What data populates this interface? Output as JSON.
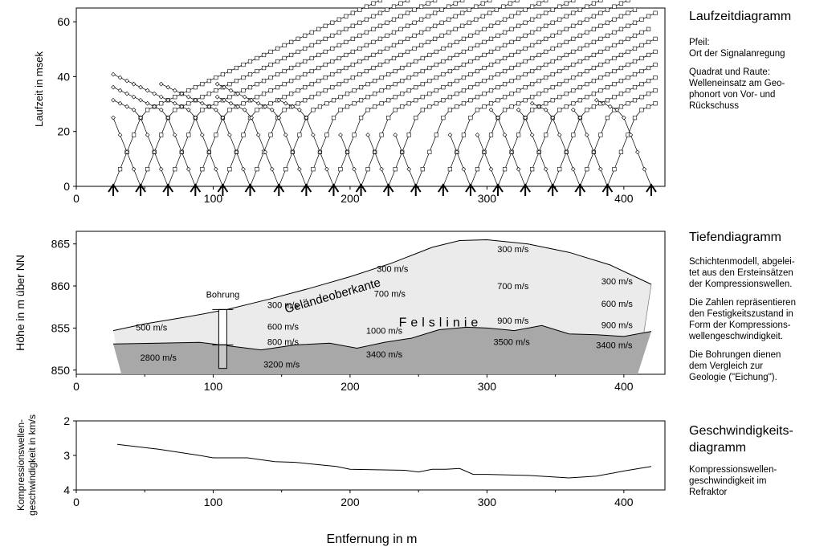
{
  "chart_data": [
    {
      "type": "scatter",
      "panel": "travel-time",
      "ylabel": "Laufzeit in msek",
      "xlim": [
        0,
        430
      ],
      "ylim": [
        0,
        65
      ],
      "yticks": [
        "0",
        "20",
        "40",
        "60"
      ],
      "xticks": [
        "0",
        "100",
        "200",
        "300",
        "400"
      ],
      "shot_points": [
        27,
        47,
        67,
        87,
        107,
        127,
        148,
        168,
        188,
        208,
        228,
        248,
        268,
        288,
        308,
        328,
        348,
        368,
        388,
        420
      ],
      "forward_max_x": [
        380,
        420,
        423,
        423,
        420,
        423,
        423,
        423,
        423,
        423,
        410,
        423,
        420,
        423,
        423,
        423,
        423,
        423,
        423,
        423
      ],
      "reverse_min_x": [
        27,
        27,
        27,
        27,
        27,
        60,
        100,
        100,
        145,
        190,
        210,
        230,
        270,
        270,
        290,
        300,
        320,
        330,
        360,
        380
      ],
      "velocity_near_m_s": 800,
      "velocity_far_m_s": 3400,
      "grid": false
    },
    {
      "type": "area",
      "panel": "depth",
      "ylabel": "Höhe in m über NN",
      "xlim": [
        0,
        430
      ],
      "ylim": [
        849.5,
        866.5
      ],
      "yticks": [
        "850",
        "855",
        "860",
        "865"
      ],
      "xticks": [
        "0",
        "100",
        "200",
        "300",
        "400"
      ],
      "surface": {
        "label": "Geländeoberkante",
        "x": [
          27,
          50,
          80,
          110,
          140,
          170,
          200,
          230,
          260,
          280,
          300,
          330,
          360,
          390,
          420
        ],
        "y": [
          854.7,
          855.5,
          856.3,
          857.2,
          858.4,
          859.7,
          861.1,
          862.7,
          864.6,
          865.4,
          865.5,
          865.0,
          864.0,
          862.5,
          860.2
        ]
      },
      "rock_line": {
        "label": "Felslinie",
        "x": [
          27,
          60,
          90,
          110,
          135,
          160,
          185,
          205,
          225,
          245,
          265,
          285,
          300,
          320,
          340,
          360,
          380,
          400,
          420
        ],
        "y": [
          853.1,
          853.2,
          853.3,
          852.9,
          852.4,
          853.0,
          853.2,
          852.6,
          853.3,
          853.8,
          854.8,
          855.1,
          855.0,
          854.7,
          855.3,
          854.3,
          854.2,
          854.0,
          854.6
        ]
      },
      "base": 849.5,
      "borehole": {
        "label": "Bohrung",
        "x": 107,
        "top": 857.2,
        "bottom": 850.2,
        "rock": 853.0
      },
      "velocity_labels": [
        {
          "text": "500 m/s",
          "x": 55,
          "y": 854.7
        },
        {
          "text": "2800 m/s",
          "x": 60,
          "y": 851.1
        },
        {
          "text": "300 m/s",
          "x": 151,
          "y": 857.4
        },
        {
          "text": "600 m/s",
          "x": 151,
          "y": 854.8
        },
        {
          "text": "800 m/s",
          "x": 151,
          "y": 853.0
        },
        {
          "text": "3200 m/s",
          "x": 150,
          "y": 850.3
        },
        {
          "text": "300 m/s",
          "x": 231,
          "y": 861.7
        },
        {
          "text": "700 m/s",
          "x": 229,
          "y": 858.7
        },
        {
          "text": "1000 m/s",
          "x": 225,
          "y": 854.3
        },
        {
          "text": "3400 m/s",
          "x": 225,
          "y": 851.5
        },
        {
          "text": "300 m/s",
          "x": 319,
          "y": 864.0
        },
        {
          "text": "700 m/s",
          "x": 319,
          "y": 859.6
        },
        {
          "text": "900 m/s",
          "x": 319,
          "y": 855.5
        },
        {
          "text": "3500 m/s",
          "x": 318,
          "y": 853.0
        },
        {
          "text": "300 m/s",
          "x": 395,
          "y": 860.2
        },
        {
          "text": "600 m/s",
          "x": 395,
          "y": 857.5
        },
        {
          "text": "900 m/s",
          "x": 395,
          "y": 855.0
        },
        {
          "text": "3400 m/s",
          "x": 393,
          "y": 852.6
        }
      ]
    },
    {
      "type": "line",
      "panel": "velocity",
      "ylabel": "Kompressionswellen-\ngeschwindigkeit in km/s",
      "xlabel": "Entfernung in m",
      "xlim": [
        0,
        430
      ],
      "ylim": [
        2,
        4
      ],
      "y_inverted": true,
      "yticks": [
        "2",
        "3",
        "4"
      ],
      "xticks": [
        "0",
        "100",
        "200",
        "300",
        "400"
      ],
      "series": [
        {
          "x": [
            30,
            60,
            90,
            100,
            125,
            145,
            160,
            190,
            200,
            240,
            250,
            260,
            270,
            280,
            290,
            300,
            330,
            360,
            380,
            400,
            420
          ],
          "y": [
            2.68,
            2.82,
            3.0,
            3.07,
            3.07,
            3.18,
            3.2,
            3.32,
            3.4,
            3.43,
            3.48,
            3.4,
            3.4,
            3.38,
            3.55,
            3.55,
            3.58,
            3.65,
            3.6,
            3.45,
            3.32
          ]
        }
      ]
    }
  ],
  "legend": {
    "travel_title": "Laufzeitdiagramm",
    "travel_p1": "Pfeil:\nOrt der Signalanregung",
    "travel_p2": "Quadrat und Raute:\nWelleneinsatz am Geo-\nphonort von Vor- und\nRückschuss",
    "depth_title": "Tiefendiagramm",
    "depth_p1": "Schichtenmodell, abgelei-\ntet aus den Ersteinsätzen\nder Kompressionswellen.",
    "depth_p2": "Die Zahlen repräsentieren\nden Festigkeitszustand in\nForm der Kompressions-\nwellengeschwindigkeit.",
    "depth_p3": "Die Bohrungen dienen\ndem Vergleich zur\nGeologie (\"Eichung\").",
    "vel_title": "Geschwindigkeits-\ndiagramm",
    "vel_p1": "Kompressionswellen-\ngeschwindigkeit im\nRefraktor"
  },
  "colors": {
    "overburden": "#ebebeb",
    "bedrock": "#a8a8a8",
    "borehole_rock": "#c8c8c8",
    "panel_border": "#000000"
  }
}
